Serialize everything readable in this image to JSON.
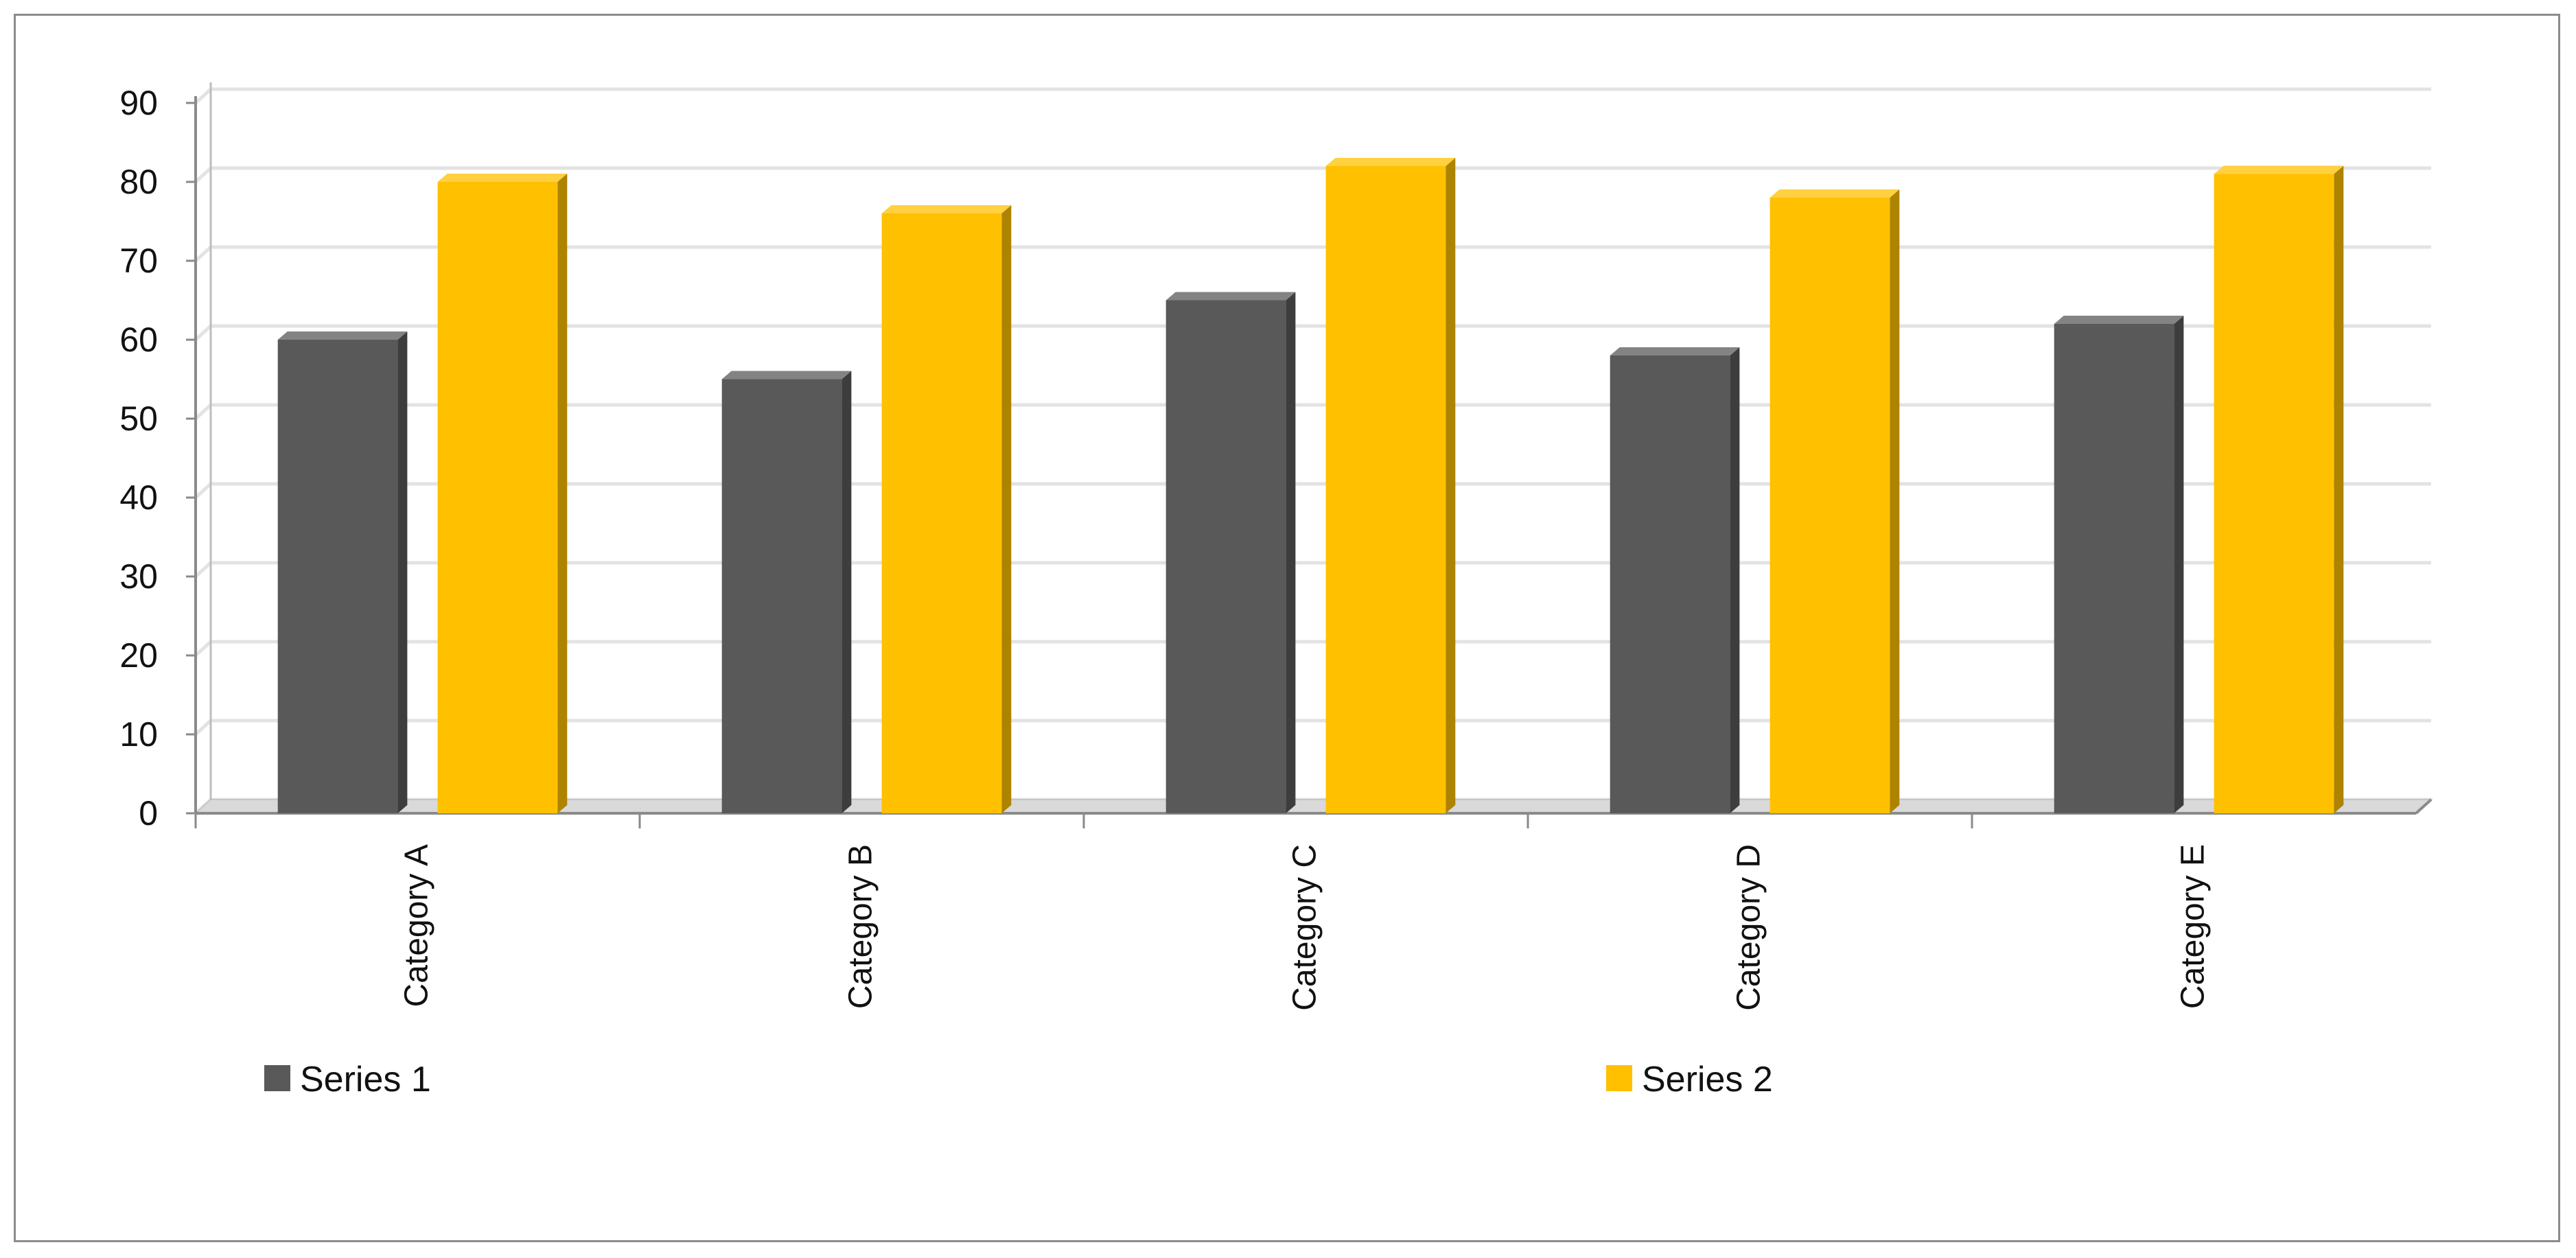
{
  "chart_data": {
    "type": "bar",
    "title": "",
    "xlabel": "",
    "ylabel": "",
    "ylim": [
      0,
      90
    ],
    "yticks": [
      0,
      10,
      20,
      30,
      40,
      50,
      60,
      70,
      80,
      90
    ],
    "categories": [
      "Category A",
      "Category B",
      "Category C",
      "Category D",
      "Category E"
    ],
    "series": [
      {
        "name": "Series 1",
        "color": "#595959",
        "values": [
          60,
          55,
          65,
          58,
          62
        ]
      },
      {
        "name": "Series 2",
        "color": "#ffc000",
        "values": [
          80,
          76,
          82,
          78,
          81
        ]
      }
    ],
    "grid": true,
    "legend": "bottom"
  }
}
